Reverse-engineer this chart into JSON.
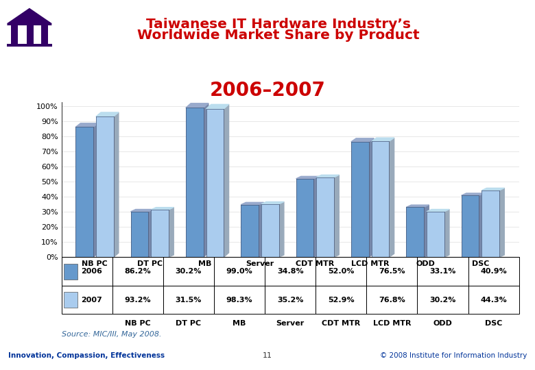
{
  "title_line1": "Taiwanese IT Hardware Industry’s",
  "title_line2": "Worldwide Market Share by Product",
  "subtitle": "2006–2007",
  "categories": [
    "NB PC",
    "DT PC",
    "MB",
    "Server",
    "CDT MTR",
    "LCD MTR",
    "ODD",
    "DSC"
  ],
  "values_2006": [
    86.2,
    30.2,
    99.0,
    34.8,
    52.0,
    76.5,
    33.1,
    40.9
  ],
  "values_2007": [
    93.2,
    31.5,
    98.3,
    35.2,
    52.9,
    76.8,
    30.2,
    44.3
  ],
  "bar_color_2006": "#6699CC",
  "bar_color_2007": "#AACCEE",
  "bar_top_color_2006": "#99AACC",
  "bar_top_color_2007": "#BBDDEE",
  "shadow_color_2006": "#7788AA",
  "shadow_color_2007": "#99AABB",
  "bar_gray_shadow": "#999999",
  "title_color": "#CC0000",
  "subtitle_color": "#CC0000",
  "source_text": "Source: MIC/III, May 2008.",
  "source_color": "#336699",
  "footer_left": "Innovation, Compassion, Effectiveness",
  "footer_center": "11",
  "footer_right": "© 2008 Institute for Information Industry",
  "header_line_color": "#4466AA",
  "footer_line_color": "#4466AA",
  "footer_text_color": "#003399",
  "background_color": "#FFFFFF",
  "logo_color": "#330066",
  "table_2006_label": "2006",
  "table_2007_label": "2007",
  "ylim": [
    0,
    100
  ],
  "yticks": [
    0,
    10,
    20,
    30,
    40,
    50,
    60,
    70,
    80,
    90,
    100
  ]
}
